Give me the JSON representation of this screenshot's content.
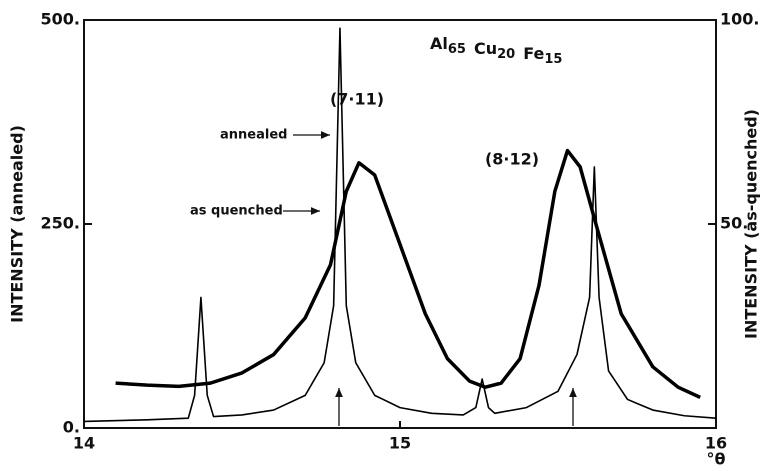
{
  "chart_data": {
    "type": "line",
    "title_parts": [
      {
        "text": "Al",
        "sub": "65"
      },
      {
        "text": "Cu",
        "sub": "20"
      },
      {
        "text": "Fe",
        "sub": "15"
      }
    ],
    "xlabel": "°θ",
    "ylabel": "INTENSITY (annealed)",
    "y2label": "INTENSITY (as-quenched)",
    "annotations": [
      "(7·11)",
      "(8·12)"
    ],
    "xlim": [
      14,
      16
    ],
    "xticks": [
      14,
      15,
      16
    ],
    "ylim": [
      0,
      500
    ],
    "yticks": [
      {
        "value": 0,
        "label": "0."
      },
      {
        "value": 250,
        "label": "250."
      },
      {
        "value": 500,
        "label": "500."
      }
    ],
    "y2lim": [
      0,
      100
    ],
    "y2ticks": [
      {
        "value": 50,
        "label": "50."
      },
      {
        "value": 100,
        "label": "100."
      }
    ],
    "series": [
      {
        "name": "annealed",
        "color": "#000000",
        "x": [
          14.0,
          14.2,
          14.33,
          14.35,
          14.37,
          14.39,
          14.41,
          14.5,
          14.6,
          14.7,
          14.76,
          14.79,
          14.81,
          14.83,
          14.86,
          14.92,
          15.0,
          15.1,
          15.2,
          15.24,
          15.26,
          15.28,
          15.3,
          15.4,
          15.5,
          15.56,
          15.6,
          15.615,
          15.63,
          15.66,
          15.72,
          15.8,
          15.9,
          16.0
        ],
        "values": [
          8,
          10,
          12,
          40,
          160,
          40,
          14,
          16,
          22,
          40,
          80,
          150,
          490,
          150,
          80,
          40,
          25,
          18,
          16,
          25,
          60,
          25,
          18,
          25,
          45,
          90,
          160,
          320,
          160,
          70,
          35,
          22,
          15,
          12
        ]
      },
      {
        "name": "as quenched",
        "color": "#000000",
        "axis": "y2",
        "x": [
          14.1,
          14.2,
          14.3,
          14.4,
          14.5,
          14.6,
          14.7,
          14.78,
          14.83,
          14.87,
          14.92,
          15.0,
          15.08,
          15.15,
          15.22,
          15.27,
          15.32,
          15.38,
          15.44,
          15.49,
          15.53,
          15.57,
          15.62,
          15.7,
          15.8,
          15.88,
          15.95
        ],
        "values": [
          11,
          10.5,
          10.2,
          11,
          13.5,
          18,
          27,
          40,
          58,
          65,
          62,
          45,
          28,
          17,
          11.5,
          10,
          11,
          17,
          35,
          58,
          68,
          64,
          50,
          28,
          15,
          10,
          7.5
        ]
      }
    ]
  }
}
